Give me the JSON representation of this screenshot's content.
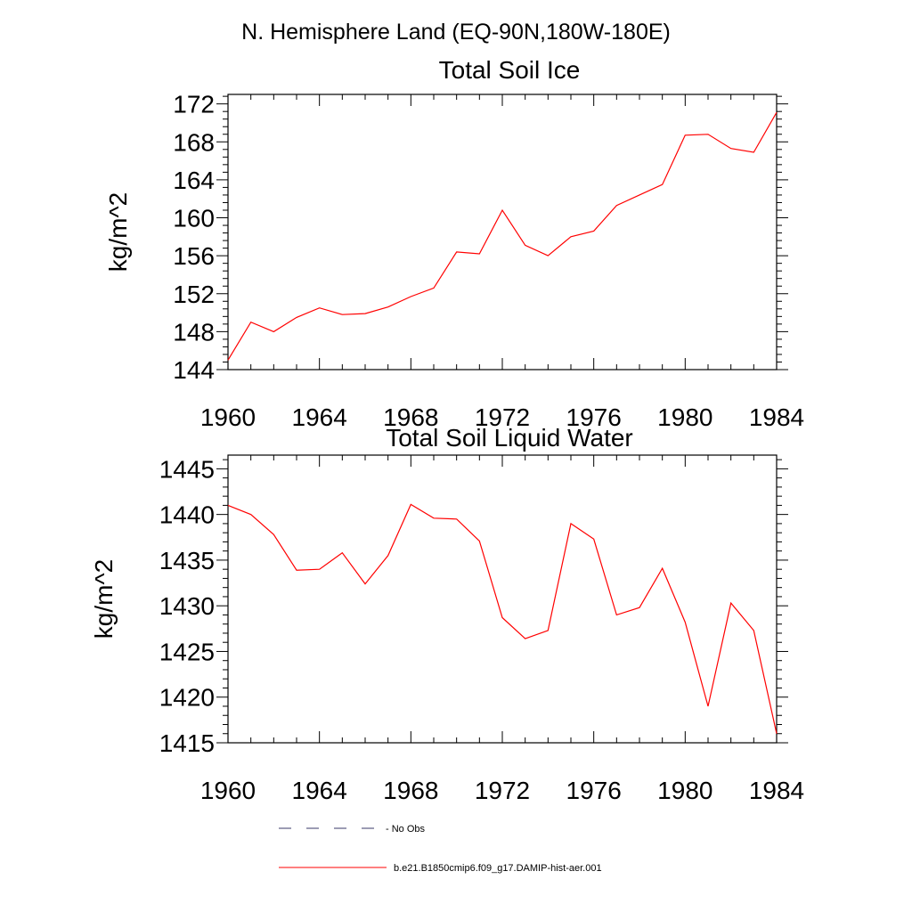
{
  "figure": {
    "title": "N. Hemisphere Land (EQ-90N,180W-180E)"
  },
  "chart_data": [
    {
      "type": "line",
      "title": "Total Soil Ice",
      "ylabel": "kg/m^2",
      "xlabel": "",
      "xlim": [
        1960,
        1984
      ],
      "ylim": [
        144,
        173
      ],
      "x_ticks": [
        "1960",
        "1964",
        "1968",
        "1972",
        "1976",
        "1980",
        "1984"
      ],
      "y_ticks": [
        "144",
        "148",
        "152",
        "156",
        "160",
        "164",
        "168",
        "172"
      ],
      "x": [
        1960,
        1961,
        1962,
        1963,
        1964,
        1965,
        1966,
        1967,
        1968,
        1969,
        1970,
        1971,
        1972,
        1973,
        1974,
        1975,
        1976,
        1977,
        1978,
        1979,
        1980,
        1981,
        1982,
        1983,
        1984
      ],
      "series": [
        {
          "name": "b.e21.B1850cmip6.f09_g17.DAMIP-hist-aer.001",
          "color": "#ff0000",
          "values": [
            145.0,
            149.0,
            148.0,
            149.5,
            150.5,
            149.8,
            149.9,
            150.6,
            151.7,
            152.6,
            156.4,
            156.2,
            160.8,
            157.1,
            156.0,
            158.0,
            158.6,
            161.3,
            162.4,
            163.5,
            168.7,
            168.8,
            167.3,
            166.9,
            171.1
          ]
        }
      ]
    },
    {
      "type": "line",
      "title": "Total Soil Liquid Water",
      "ylabel": "kg/m^2",
      "xlabel": "",
      "xlim": [
        1960,
        1984
      ],
      "ylim": [
        1415,
        1446.5
      ],
      "x_ticks": [
        "1960",
        "1964",
        "1968",
        "1972",
        "1976",
        "1980",
        "1984"
      ],
      "y_ticks": [
        "1415",
        "1420",
        "1425",
        "1430",
        "1435",
        "1440",
        "1445"
      ],
      "x": [
        1960,
        1961,
        1962,
        1963,
        1964,
        1965,
        1966,
        1967,
        1968,
        1969,
        1970,
        1971,
        1972,
        1973,
        1974,
        1975,
        1976,
        1977,
        1978,
        1979,
        1980,
        1981,
        1982,
        1983,
        1984
      ],
      "series": [
        {
          "name": "b.e21.B1850cmip6.f09_g17.DAMIP-hist-aer.001",
          "color": "#ff0000",
          "values": [
            1441.0,
            1440.0,
            1437.8,
            1433.9,
            1434.0,
            1435.8,
            1432.4,
            1435.5,
            1441.1,
            1439.6,
            1439.5,
            1437.1,
            1428.7,
            1426.4,
            1427.3,
            1439.0,
            1437.3,
            1429.0,
            1429.8,
            1434.1,
            1428.2,
            1419.0,
            1430.3,
            1427.3,
            1416.0
          ]
        }
      ]
    }
  ],
  "legend": {
    "items": [
      {
        "label": "No Obs",
        "style": "dashed",
        "color": "#3a3a6a"
      },
      {
        "label": "b.e21.B1850cmip6.f09_g17.DAMIP-hist-aer.001",
        "style": "solid",
        "color": "#ff0000"
      }
    ]
  }
}
